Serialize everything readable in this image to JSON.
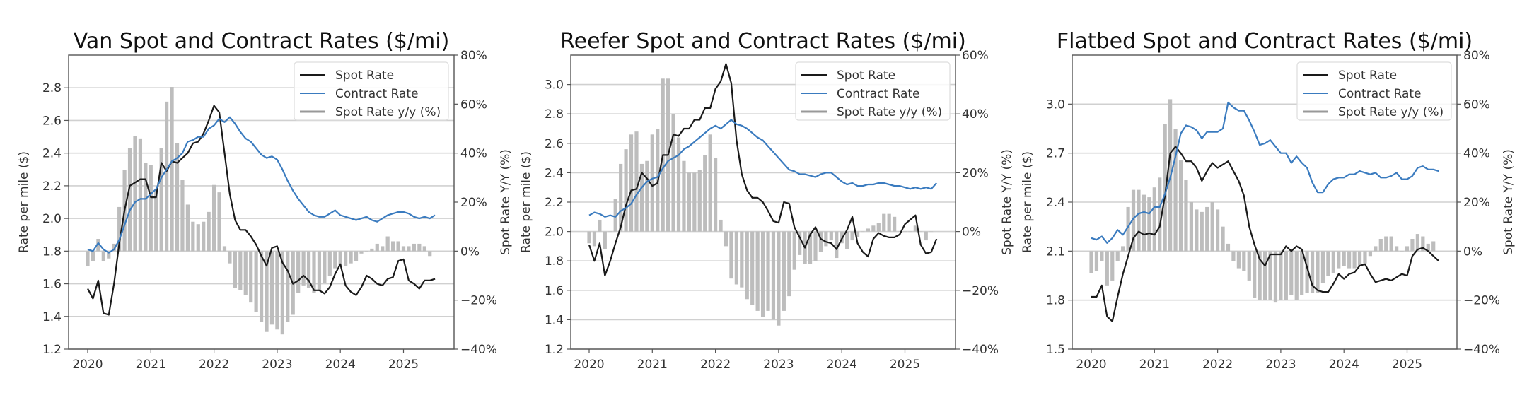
{
  "figure": {
    "legend_labels": [
      "Spot Rate",
      "Contract Rate",
      "Spot Rate y/y (%)"
    ],
    "colors": {
      "spot": "#1a1a1a",
      "contract": "#3a7bbf",
      "yoy_bar": "#bdbdbd",
      "grid": "#d0d0d0",
      "axis": "#555555"
    }
  },
  "chart_data": [
    {
      "type": "line+bar",
      "title": "Van Spot and Contract Rates ($/mi)",
      "xlabel": "",
      "ylabel": "Rate per mile ($)",
      "y2label": "Spot Rate Y/Y (%)",
      "start_month": "2020-01",
      "x_ticks": [
        "2020",
        "2021",
        "2022",
        "2023",
        "2024",
        "2025"
      ],
      "ylim": [
        1.2,
        3.0
      ],
      "y_ticks": [
        "1.2",
        "1.4",
        "1.6",
        "1.8",
        "2.0",
        "2.2",
        "2.4",
        "2.6",
        "2.8"
      ],
      "y2lim": [
        -40,
        80
      ],
      "y2_ticks": [
        "−40%",
        "−20%",
        "0%",
        "20%",
        "40%",
        "60%",
        "80%"
      ],
      "grid": true,
      "legend_position": "top-right",
      "series": [
        {
          "name": "Spot Rate",
          "kind": "line",
          "values": [
            1.57,
            1.51,
            1.62,
            1.42,
            1.41,
            1.6,
            1.85,
            2.05,
            2.2,
            2.22,
            2.24,
            2.24,
            2.13,
            2.13,
            2.34,
            2.29,
            2.35,
            2.34,
            2.37,
            2.4,
            2.46,
            2.47,
            2.52,
            2.6,
            2.69,
            2.65,
            2.4,
            2.15,
            1.99,
            1.93,
            1.93,
            1.89,
            1.84,
            1.77,
            1.71,
            1.82,
            1.83,
            1.73,
            1.68,
            1.6,
            1.62,
            1.65,
            1.62,
            1.56,
            1.56,
            1.54,
            1.58,
            1.66,
            1.72,
            1.59,
            1.55,
            1.53,
            1.58,
            1.65,
            1.63,
            1.6,
            1.59,
            1.63,
            1.64,
            1.74,
            1.75,
            1.62,
            1.6,
            1.57,
            1.62,
            1.62,
            1.63
          ]
        },
        {
          "name": "Contract Rate",
          "kind": "line",
          "values": [
            1.81,
            1.8,
            1.85,
            1.81,
            1.79,
            1.81,
            1.87,
            1.96,
            2.05,
            2.1,
            2.12,
            2.12,
            2.15,
            2.18,
            2.25,
            2.3,
            2.35,
            2.37,
            2.4,
            2.47,
            2.48,
            2.5,
            2.5,
            2.55,
            2.57,
            2.61,
            2.59,
            2.62,
            2.58,
            2.53,
            2.49,
            2.47,
            2.43,
            2.39,
            2.37,
            2.38,
            2.36,
            2.3,
            2.23,
            2.17,
            2.12,
            2.08,
            2.04,
            2.02,
            2.01,
            2.01,
            2.03,
            2.05,
            2.02,
            2.01,
            2.0,
            1.99,
            2.0,
            2.01,
            1.99,
            1.98,
            2.0,
            2.02,
            2.03,
            2.04,
            2.04,
            2.03,
            2.01,
            2.0,
            2.01,
            2.0,
            2.02
          ]
        },
        {
          "name": "Spot Rate y/y (%)",
          "kind": "bar",
          "axis": "right",
          "values": [
            -6,
            -4,
            5,
            -4,
            -3,
            3,
            18,
            33,
            42,
            47,
            46,
            36,
            35,
            25,
            42,
            61,
            67,
            44,
            29,
            19,
            12,
            11,
            12,
            16,
            27,
            24,
            2,
            -5,
            -15,
            -16,
            -18,
            -21,
            -25,
            -29,
            -33,
            -30,
            -32,
            -34,
            -29,
            -26,
            -17,
            -14,
            -15,
            -17,
            -16,
            -13,
            -10,
            -7,
            -6,
            -6,
            -5,
            -4,
            -1,
            0,
            1,
            3,
            2,
            6,
            4,
            4,
            2,
            2,
            3,
            3,
            2,
            -2
          ]
        }
      ]
    },
    {
      "type": "line+bar",
      "title": "Reefer Spot and Contract Rates ($/mi)",
      "xlabel": "",
      "ylabel": "Rate per mile ($)",
      "y2label": "Spot Rate Y/Y (%)",
      "start_month": "2020-01",
      "x_ticks": [
        "2020",
        "2021",
        "2022",
        "2023",
        "2024",
        "2025"
      ],
      "ylim": [
        1.2,
        3.2
      ],
      "y_ticks": [
        "1.2",
        "1.4",
        "1.6",
        "1.8",
        "2.0",
        "2.2",
        "2.4",
        "2.6",
        "2.8",
        "3.0"
      ],
      "y2lim": [
        -40,
        60
      ],
      "y2_ticks": [
        "−40%",
        "−20%",
        "0%",
        "20%",
        "40%",
        "60%"
      ],
      "grid": true,
      "legend_position": "top-right",
      "series": [
        {
          "name": "Spot Rate",
          "kind": "line",
          "values": [
            1.91,
            1.8,
            1.92,
            1.7,
            1.8,
            1.92,
            2.03,
            2.18,
            2.28,
            2.29,
            2.4,
            2.36,
            2.31,
            2.33,
            2.52,
            2.52,
            2.66,
            2.65,
            2.7,
            2.7,
            2.76,
            2.76,
            2.84,
            2.84,
            2.97,
            3.02,
            3.14,
            3.01,
            2.62,
            2.39,
            2.28,
            2.23,
            2.23,
            2.2,
            2.14,
            2.07,
            2.06,
            2.2,
            2.19,
            2.03,
            1.96,
            1.89,
            1.98,
            2.03,
            1.95,
            1.93,
            1.92,
            1.88,
            1.95,
            2.01,
            2.1,
            1.92,
            1.86,
            1.83,
            1.95,
            1.99,
            1.97,
            1.96,
            1.96,
            1.98,
            2.05,
            2.08,
            2.11,
            1.91,
            1.85,
            1.86,
            1.95
          ]
        },
        {
          "name": "Contract Rate",
          "kind": "line",
          "values": [
            2.11,
            2.13,
            2.12,
            2.1,
            2.11,
            2.1,
            2.14,
            2.16,
            2.19,
            2.25,
            2.3,
            2.34,
            2.36,
            2.37,
            2.43,
            2.48,
            2.5,
            2.52,
            2.56,
            2.58,
            2.61,
            2.64,
            2.67,
            2.7,
            2.72,
            2.7,
            2.73,
            2.76,
            2.73,
            2.72,
            2.7,
            2.67,
            2.64,
            2.62,
            2.58,
            2.54,
            2.5,
            2.46,
            2.42,
            2.41,
            2.39,
            2.39,
            2.38,
            2.37,
            2.39,
            2.4,
            2.4,
            2.37,
            2.34,
            2.32,
            2.33,
            2.31,
            2.31,
            2.32,
            2.32,
            2.33,
            2.33,
            2.32,
            2.31,
            2.31,
            2.3,
            2.29,
            2.3,
            2.29,
            2.3,
            2.29,
            2.33
          ]
        },
        {
          "name": "Spot Rate y/y (%)",
          "kind": "bar",
          "axis": "right",
          "values": [
            -4,
            -5,
            4,
            -6,
            0,
            11,
            23,
            28,
            33,
            34,
            23,
            24,
            33,
            35,
            52,
            52,
            40,
            32,
            24,
            20,
            20,
            21,
            26,
            33,
            25,
            4,
            -5,
            -16,
            -18,
            -19,
            -23,
            -25,
            -27,
            -29,
            -27,
            -30,
            -32,
            -27,
            -22,
            -13,
            -8,
            -11,
            -11,
            -10,
            -7,
            -5,
            -3,
            -9,
            -4,
            -6,
            -3,
            -2,
            0,
            1,
            2,
            3,
            6,
            6,
            5,
            0,
            0,
            0,
            2,
            0,
            -3,
            0
          ]
        }
      ]
    },
    {
      "type": "line+bar",
      "title": "Flatbed Spot and Contract Rates ($/mi)",
      "xlabel": "",
      "ylabel": "Rate per mile ($)",
      "y2label": "Spot Rate Y/Y (%)",
      "start_month": "2020-01",
      "x_ticks": [
        "2020",
        "2021",
        "2022",
        "2023",
        "2024",
        "2025"
      ],
      "ylim": [
        1.5,
        3.3
      ],
      "y_ticks": [
        "1.5",
        "1.8",
        "2.1",
        "2.4",
        "2.7",
        "3.0"
      ],
      "y2lim": [
        -40,
        80
      ],
      "y2_ticks": [
        "−40%",
        "−20%",
        "0%",
        "20%",
        "40%",
        "60%",
        "80%"
      ],
      "grid": true,
      "legend_position": "top-right",
      "series": [
        {
          "name": "Spot Rate",
          "kind": "line",
          "values": [
            1.82,
            1.82,
            1.89,
            1.7,
            1.67,
            1.82,
            1.96,
            2.07,
            2.18,
            2.22,
            2.2,
            2.21,
            2.2,
            2.25,
            2.44,
            2.7,
            2.74,
            2.7,
            2.65,
            2.65,
            2.61,
            2.53,
            2.59,
            2.64,
            2.61,
            2.63,
            2.65,
            2.59,
            2.53,
            2.44,
            2.25,
            2.14,
            2.05,
            2.01,
            2.08,
            2.08,
            2.08,
            2.13,
            2.1,
            2.13,
            2.11,
            2.0,
            1.89,
            1.86,
            1.85,
            1.85,
            1.9,
            1.96,
            1.93,
            1.96,
            1.97,
            2.01,
            2.02,
            1.96,
            1.91,
            1.92,
            1.93,
            1.92,
            1.94,
            1.96,
            1.95,
            2.07,
            2.11,
            2.12,
            2.1,
            2.07,
            2.04
          ]
        },
        {
          "name": "Contract Rate",
          "kind": "line",
          "values": [
            2.18,
            2.17,
            2.19,
            2.15,
            2.18,
            2.23,
            2.2,
            2.25,
            2.3,
            2.33,
            2.34,
            2.33,
            2.37,
            2.37,
            2.45,
            2.55,
            2.68,
            2.82,
            2.87,
            2.86,
            2.84,
            2.79,
            2.83,
            2.83,
            2.83,
            2.85,
            3.01,
            2.98,
            2.96,
            2.96,
            2.9,
            2.83,
            2.75,
            2.76,
            2.78,
            2.74,
            2.7,
            2.7,
            2.64,
            2.68,
            2.64,
            2.61,
            2.52,
            2.46,
            2.46,
            2.51,
            2.54,
            2.55,
            2.55,
            2.57,
            2.57,
            2.59,
            2.58,
            2.57,
            2.58,
            2.55,
            2.55,
            2.56,
            2.58,
            2.54,
            2.54,
            2.56,
            2.61,
            2.62,
            2.6,
            2.6,
            2.59
          ]
        },
        {
          "name": "Spot Rate y/y (%)",
          "kind": "bar",
          "axis": "right",
          "values": [
            -9,
            -8,
            -4,
            -14,
            -12,
            -4,
            2,
            18,
            25,
            25,
            23,
            22,
            26,
            30,
            52,
            62,
            50,
            37,
            29,
            20,
            17,
            16,
            18,
            20,
            17,
            10,
            3,
            -4,
            -7,
            -8,
            -12,
            -19,
            -20,
            -20,
            -20,
            -21,
            -20,
            -20,
            -18,
            -20,
            -18,
            -17,
            -17,
            -17,
            -13,
            -10,
            -9,
            -7,
            -6,
            -7,
            -7,
            -6,
            -5,
            -2,
            2,
            5,
            6,
            6,
            2,
            0,
            2,
            5,
            7,
            6,
            3,
            4
          ]
        }
      ]
    }
  ]
}
